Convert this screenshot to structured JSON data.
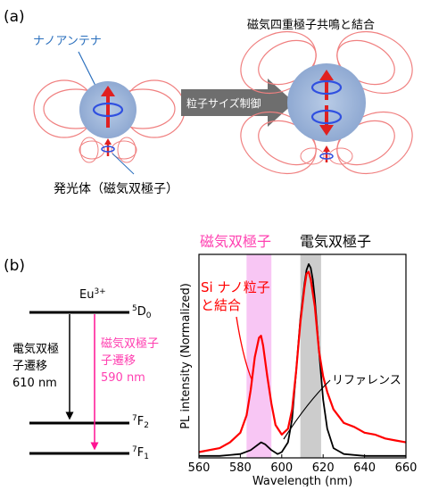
{
  "panel_a": {
    "label": "(a)",
    "antenna_label": "ナノアンテナ",
    "process_label": "粒子サイズ制御",
    "right_title": "磁気四重極子共鳴と結合",
    "emitter_label": "発光体（磁気双極子）",
    "colors": {
      "field": "#f08080",
      "sphere": "#9bb3d6",
      "arrow": "#e02020",
      "loop": "#3050e0",
      "process": "#6e6e6e"
    }
  },
  "panel_b": {
    "label": "(b)",
    "ion": "Eu",
    "ion_sup": "3+",
    "levels": [
      {
        "sup": "5",
        "name": "D",
        "sub": "0"
      },
      {
        "sup": "7",
        "name": "F",
        "sub": "2"
      },
      {
        "sup": "7",
        "name": "F",
        "sub": "1"
      }
    ],
    "ed_transition": [
      "電気双極",
      "子遷移",
      "610 nm"
    ],
    "md_transition": [
      "磁気双極子",
      "子遷移",
      "590 nm"
    ],
    "band_md_label": "磁気双極子",
    "band_ed_label": "電気双極子",
    "si_label": [
      "Si ナノ粒子",
      "と結合"
    ],
    "ref_label": "リファレンス",
    "colors": {
      "md": "#ff66cc",
      "md_band": "#f8c6f4",
      "ed_band": "#cccccc",
      "si": "#ff0000",
      "ref": "#000000"
    }
  },
  "chart_data": {
    "type": "line",
    "xlabel": "Wavelength (nm)",
    "ylabel": "PL intensity (Normalized)",
    "xlim": [
      560,
      660
    ],
    "ylim": [
      0,
      1.05
    ],
    "xticks": [
      560,
      580,
      600,
      620,
      640,
      660
    ],
    "grid": false,
    "bands": [
      {
        "name": "磁気双極子",
        "x0": 583,
        "x1": 595
      },
      {
        "name": "電気双極子",
        "x0": 609,
        "x1": 619
      }
    ],
    "series": [
      {
        "name": "Si ナノ粒子と結合",
        "x": [
          560,
          570,
          575,
          580,
          583,
          585,
          587,
          589,
          590,
          591,
          593,
          595,
          597,
          600,
          603,
          605,
          607,
          609,
          611,
          612,
          613,
          614,
          615,
          616,
          618,
          620,
          622,
          625,
          630,
          635,
          640,
          645,
          650,
          655,
          660
        ],
        "y": [
          0.03,
          0.05,
          0.08,
          0.13,
          0.22,
          0.35,
          0.52,
          0.62,
          0.63,
          0.58,
          0.42,
          0.28,
          0.17,
          0.12,
          0.15,
          0.25,
          0.45,
          0.7,
          0.88,
          0.95,
          0.96,
          0.92,
          0.85,
          0.78,
          0.55,
          0.42,
          0.34,
          0.25,
          0.18,
          0.16,
          0.13,
          0.12,
          0.1,
          0.09,
          0.08
        ]
      },
      {
        "name": "リファレンス",
        "x": [
          560,
          570,
          580,
          585,
          590,
          592,
          595,
          598,
          600,
          603,
          605,
          607,
          609,
          611,
          612,
          613,
          614,
          615,
          616,
          618,
          620,
          622,
          625,
          630,
          640,
          650,
          660
        ],
        "y": [
          0.01,
          0.01,
          0.02,
          0.04,
          0.08,
          0.07,
          0.04,
          0.02,
          0.03,
          0.08,
          0.2,
          0.45,
          0.72,
          0.9,
          0.97,
          1.0,
          0.98,
          0.92,
          0.82,
          0.55,
          0.3,
          0.15,
          0.05,
          0.02,
          0.01,
          0.01,
          0.01
        ]
      }
    ]
  }
}
